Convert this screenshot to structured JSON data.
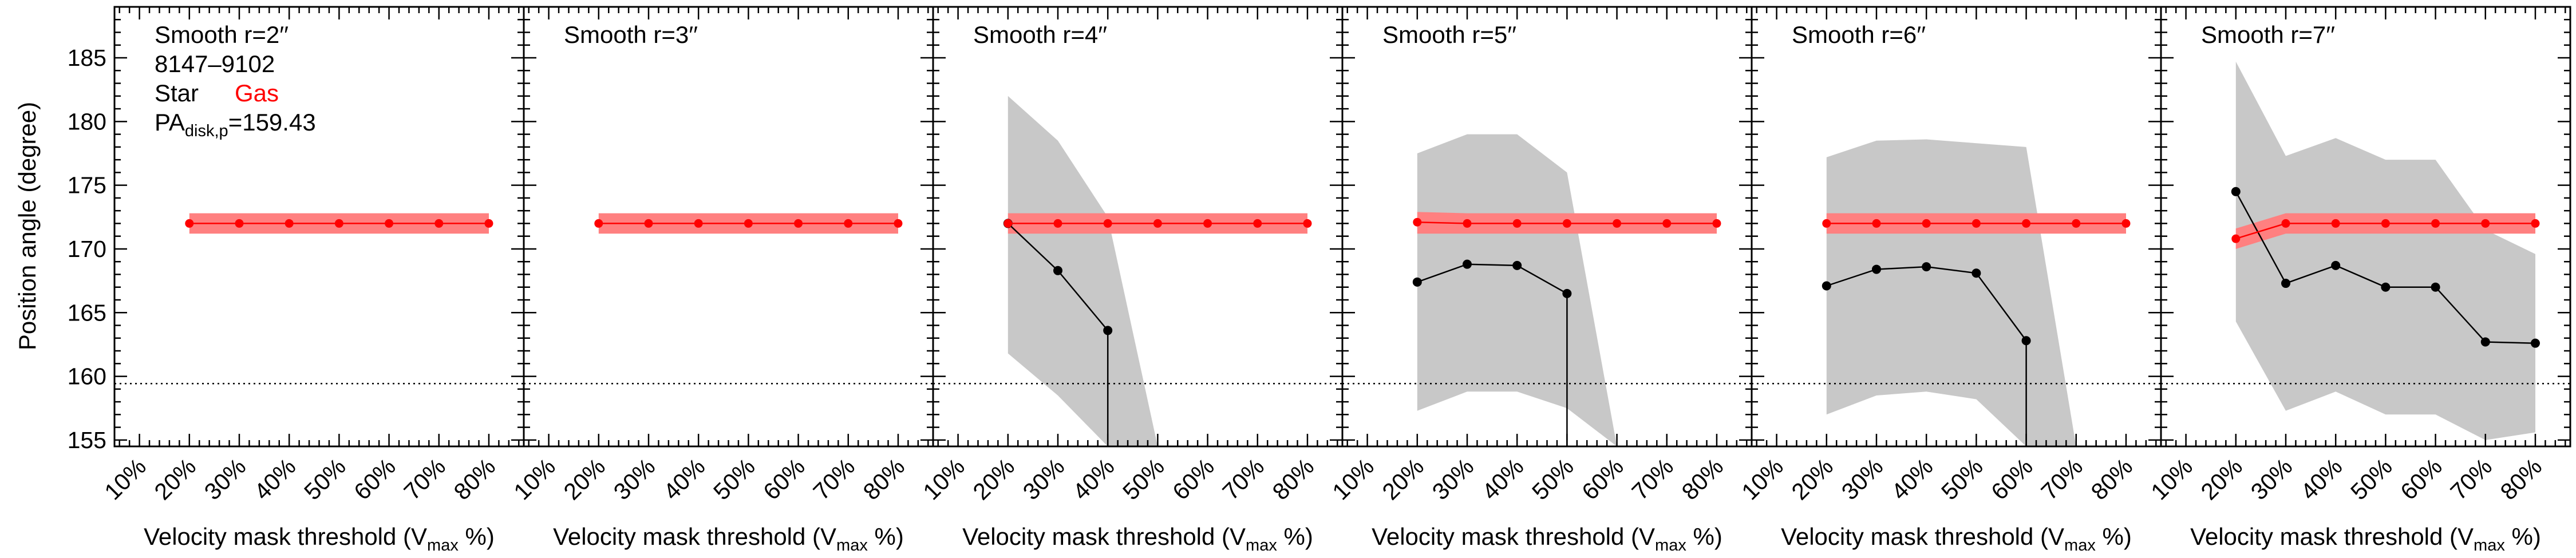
{
  "figure": {
    "ylabel": "Position angle (degree)",
    "xlabel_main": "Velocity mask threshold (V",
    "xlabel_sub": "max",
    "xlabel_end": " %)",
    "info": {
      "plateifu": "8147–9102",
      "star_label": "Star",
      "gas_label": "Gas",
      "pa_main": "PA",
      "pa_sub": "disk,p",
      "pa_value": "=159.43"
    },
    "colors": {
      "star": "#000000",
      "star_band": "#c8c8c8",
      "gas": "#ff0000",
      "gas_band": "#ff8080"
    }
  },
  "chart_data": [
    {
      "type": "line",
      "title": "Smooth r=2′′",
      "x": [
        20,
        30,
        40,
        50,
        60,
        70,
        80
      ],
      "ylim": [
        154.5,
        189
      ],
      "xlim": [
        5,
        87
      ],
      "yticks": [
        155,
        160,
        165,
        170,
        175,
        180,
        185
      ],
      "xticks": [
        "10%",
        "20%",
        "30%",
        "40%",
        "50%",
        "60%",
        "70%",
        "80%"
      ],
      "reference_line": 159.43,
      "series": [
        {
          "name": "Gas",
          "values": [
            172,
            172,
            172,
            172,
            172,
            172,
            172
          ],
          "lower": [
            171.2,
            171.2,
            171.2,
            171.2,
            171.2,
            171.2,
            171.2
          ],
          "upper": [
            172.8,
            172.8,
            172.8,
            172.8,
            172.8,
            172.8,
            172.8
          ]
        }
      ]
    },
    {
      "type": "line",
      "title": "Smooth r=3′′",
      "x": [
        20,
        30,
        40,
        50,
        60,
        70,
        80
      ],
      "ylim": [
        154.5,
        189
      ],
      "xlim": [
        5,
        87
      ],
      "xticks": [
        "10%",
        "20%",
        "30%",
        "40%",
        "50%",
        "60%",
        "70%",
        "80%"
      ],
      "reference_line": 159.43,
      "series": [
        {
          "name": "Gas",
          "values": [
            172,
            172,
            172,
            172,
            172,
            172,
            172
          ],
          "lower": [
            171.2,
            171.2,
            171.2,
            171.2,
            171.2,
            171.2,
            171.2
          ],
          "upper": [
            172.8,
            172.8,
            172.8,
            172.8,
            172.8,
            172.8,
            172.8
          ]
        }
      ]
    },
    {
      "type": "line",
      "title": "Smooth r=4′′",
      "x": [
        20,
        30,
        40,
        50,
        60,
        70,
        80
      ],
      "ylim": [
        154.5,
        189
      ],
      "xlim": [
        5,
        87
      ],
      "xticks": [
        "10%",
        "20%",
        "30%",
        "40%",
        "50%",
        "60%",
        "70%",
        "80%"
      ],
      "reference_line": 159.43,
      "series": [
        {
          "name": "Star",
          "x": [
            20,
            30,
            40,
            40,
            40
          ],
          "values": [
            172,
            168.3,
            163.6,
            154.5,
            154.5
          ],
          "band_x": [
            20,
            30,
            40,
            50,
            50
          ],
          "lower": [
            161.8,
            158.5,
            154.5,
            154.5,
            154.5
          ],
          "upper": [
            182,
            178.5,
            172.5,
            154.5,
            154.5
          ]
        },
        {
          "name": "Gas",
          "values": [
            172,
            172,
            172,
            172,
            172,
            172,
            172
          ],
          "lower": [
            171.2,
            171.2,
            171.2,
            171.2,
            171.2,
            171.2,
            171.2
          ],
          "upper": [
            172.8,
            172.8,
            172.8,
            172.8,
            172.8,
            172.8,
            172.8
          ]
        }
      ]
    },
    {
      "type": "line",
      "title": "Smooth r=5′′",
      "x": [
        20,
        30,
        40,
        50,
        60,
        70,
        80
      ],
      "ylim": [
        154.5,
        189
      ],
      "xlim": [
        5,
        87
      ],
      "xticks": [
        "10%",
        "20%",
        "30%",
        "40%",
        "50%",
        "60%",
        "70%",
        "80%"
      ],
      "reference_line": 159.43,
      "series": [
        {
          "name": "Star",
          "x": [
            20,
            30,
            40,
            50,
            50
          ],
          "values": [
            167.4,
            168.8,
            168.7,
            166.5,
            154.5
          ],
          "band_x": [
            20,
            30,
            40,
            50,
            60
          ],
          "lower": [
            157.3,
            158.8,
            158.8,
            157.5,
            154.5
          ],
          "upper": [
            177.5,
            179,
            179,
            176,
            154.5
          ]
        },
        {
          "name": "Gas",
          "values": [
            172.1,
            172,
            172,
            172,
            172,
            172,
            172
          ],
          "lower": [
            171.2,
            171.2,
            171.2,
            171.2,
            171.2,
            171.2,
            171.2
          ],
          "upper": [
            172.9,
            172.8,
            172.8,
            172.8,
            172.8,
            172.8,
            172.8
          ]
        }
      ]
    },
    {
      "type": "line",
      "title": "Smooth r=6′′",
      "x": [
        20,
        30,
        40,
        50,
        60,
        70,
        80
      ],
      "ylim": [
        154.5,
        189
      ],
      "xlim": [
        5,
        87
      ],
      "xticks": [
        "10%",
        "20%",
        "30%",
        "40%",
        "50%",
        "60%",
        "70%",
        "80%"
      ],
      "reference_line": 159.43,
      "series": [
        {
          "name": "Star",
          "x": [
            20,
            30,
            40,
            50,
            60,
            60
          ],
          "values": [
            167.1,
            168.4,
            168.6,
            168.1,
            162.8,
            154.5
          ],
          "band_x": [
            20,
            30,
            40,
            50,
            60,
            70
          ],
          "lower": [
            157,
            158.5,
            158.8,
            158.2,
            154.5,
            154.5
          ],
          "upper": [
            177.2,
            178.5,
            178.6,
            178.3,
            178,
            154.5
          ]
        },
        {
          "name": "Gas",
          "values": [
            172,
            172,
            172,
            172,
            172,
            172,
            172
          ],
          "lower": [
            171.2,
            171.2,
            171.2,
            171.2,
            171.2,
            171.2,
            171.2
          ],
          "upper": [
            172.8,
            172.8,
            172.8,
            172.8,
            172.8,
            172.8,
            172.8
          ]
        }
      ]
    },
    {
      "type": "line",
      "title": "Smooth r=7′′",
      "x": [
        20,
        30,
        40,
        50,
        60,
        70,
        80
      ],
      "ylim": [
        154.5,
        189
      ],
      "xlim": [
        5,
        87
      ],
      "xticks": [
        "10%",
        "20%",
        "30%",
        "40%",
        "50%",
        "60%",
        "70%",
        "80%"
      ],
      "reference_line": 159.43,
      "series": [
        {
          "name": "Star",
          "x": [
            20,
            30,
            40,
            50,
            60,
            70,
            80
          ],
          "values": [
            174.5,
            167.3,
            168.7,
            167,
            167,
            162.7,
            162.6
          ],
          "band_x": [
            20,
            30,
            40,
            50,
            60,
            70,
            80
          ],
          "lower": [
            164.3,
            157.3,
            158.8,
            157,
            157,
            155,
            155.6
          ],
          "upper": [
            184.7,
            177.3,
            178.7,
            177,
            177,
            171.5,
            169.6
          ]
        },
        {
          "name": "Gas",
          "values": [
            170.8,
            172,
            172,
            172,
            172,
            172,
            172
          ],
          "lower": [
            170,
            171.2,
            171.2,
            171.2,
            171.2,
            171.2,
            171.2
          ],
          "upper": [
            171.6,
            172.8,
            172.8,
            172.8,
            172.8,
            172.8,
            172.8
          ]
        }
      ]
    }
  ]
}
